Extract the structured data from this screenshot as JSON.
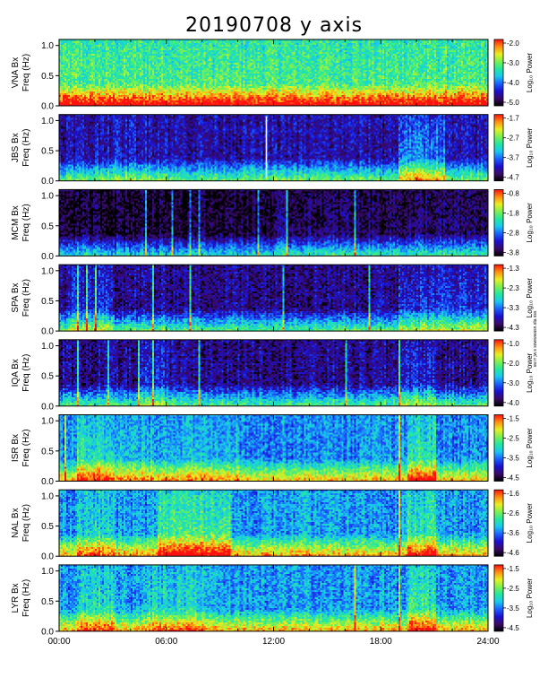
{
  "title": "20190708  y axis",
  "credit": "sw.rr jw.s sowwwasn.sta sss",
  "chart_data": {
    "type": "heatmap",
    "title": "20190708  y axis",
    "x_ticks": [
      "00:00",
      "06:00",
      "12:00",
      "18:00",
      "24:00"
    ],
    "xlim_hours": [
      0,
      24
    ],
    "ylim_hz": [
      0.0,
      1.1
    ],
    "y_ticks": [
      "0.0",
      "0.5",
      "1.0"
    ],
    "freq_unit_label": "Freq (Hz)",
    "colorbar_label": "Log₁₀ Power",
    "colormap": [
      "#000000",
      "#3a0a6a",
      "#1a10d0",
      "#1a60ff",
      "#19c8f0",
      "#22e8a0",
      "#7cf050",
      "#e8f020",
      "#ff9010",
      "#ff1010"
    ],
    "panels": [
      {
        "station": "VNA",
        "component": "Bx",
        "ylabel": "VNA  Bx",
        "cbar_ticks": [
          "-2.0",
          "-3.0",
          "-4.0",
          "-5.0"
        ],
        "cbar_range": [
          -5.0,
          -2.0
        ],
        "base_level": 0.5,
        "vlines_hours": [],
        "white_line_hours": [],
        "bursts": [
          {
            "start": 0,
            "end": 24,
            "level": 0.12
          }
        ]
      },
      {
        "station": "JBS",
        "component": "Bx",
        "ylabel": "JBS  Bx",
        "cbar_ticks": [
          "-1.7",
          "-2.7",
          "-3.7",
          "-4.7"
        ],
        "cbar_range": [
          -4.7,
          -1.7
        ],
        "base_level": 0.18,
        "vlines_hours": [],
        "white_line_hours": [
          11.6
        ],
        "bursts": [
          {
            "start": 19.0,
            "end": 21.5,
            "level": 0.25
          },
          {
            "start": 2.0,
            "end": 6.0,
            "level": 0.05
          }
        ]
      },
      {
        "station": "MCM",
        "component": "Bx",
        "ylabel": "MCM  Bx",
        "cbar_ticks": [
          "-0.8",
          "-1.8",
          "-2.8",
          "-3.8"
        ],
        "cbar_range": [
          -3.8,
          -0.8
        ],
        "base_level": 0.05,
        "vlines_hours": [
          4.8,
          6.3,
          7.3,
          7.8,
          11.1,
          12.7,
          16.5
        ],
        "white_line_hours": [],
        "bursts": [
          {
            "start": 12.0,
            "end": 24.0,
            "level": 0.06
          }
        ]
      },
      {
        "station": "SPA",
        "component": "Bx",
        "ylabel": "SPA  Bx",
        "cbar_ticks": [
          "-1.3",
          "-2.3",
          "-3.3",
          "-4.3"
        ],
        "cbar_range": [
          -4.3,
          -1.3
        ],
        "base_level": 0.15,
        "vlines_hours": [
          1.0,
          1.5,
          2.0,
          5.2,
          7.3,
          12.5,
          17.3
        ],
        "white_line_hours": [],
        "bursts": [
          {
            "start": 0.5,
            "end": 3.0,
            "level": 0.12
          },
          {
            "start": 19.0,
            "end": 24.0,
            "level": 0.15
          }
        ]
      },
      {
        "station": "IQA",
        "component": "Bx",
        "ylabel": "IQA  Bx",
        "cbar_ticks": [
          "-1.0",
          "-2.0",
          "-3.0",
          "-4.0"
        ],
        "cbar_range": [
          -4.0,
          -1.0
        ],
        "base_level": 0.15,
        "vlines_hours": [
          1.0,
          2.7,
          4.4,
          5.2,
          7.8,
          16.0,
          19.0
        ],
        "white_line_hours": [],
        "bursts": [
          {
            "start": 4.5,
            "end": 6.0,
            "level": 0.1
          },
          {
            "start": 19.0,
            "end": 21.0,
            "level": 0.12
          }
        ]
      },
      {
        "station": "ISR",
        "component": "Bx",
        "ylabel": "ISR  Bx",
        "cbar_ticks": [
          "-1.5",
          "-2.5",
          "-3.5",
          "-4.5"
        ],
        "cbar_range": [
          -4.5,
          -1.5
        ],
        "base_level": 0.38,
        "vlines_hours": [
          0.3,
          19.0
        ],
        "white_line_hours": [],
        "bursts": [
          {
            "start": 1.0,
            "end": 3.0,
            "level": 0.2
          },
          {
            "start": 3.0,
            "end": 10.0,
            "level": 0.08
          },
          {
            "start": 19.5,
            "end": 21.0,
            "level": 0.22
          }
        ]
      },
      {
        "station": "NAL",
        "component": "Bx",
        "ylabel": "NAL  Bx",
        "cbar_ticks": [
          "-1.6",
          "-2.6",
          "-3.6",
          "-4.6"
        ],
        "cbar_range": [
          -4.6,
          -1.6
        ],
        "base_level": 0.4,
        "vlines_hours": [
          19.0
        ],
        "white_line_hours": [],
        "bursts": [
          {
            "start": 5.5,
            "end": 9.5,
            "level": 0.25
          },
          {
            "start": 1.0,
            "end": 3.0,
            "level": 0.12
          },
          {
            "start": 19.5,
            "end": 21.0,
            "level": 0.2
          }
        ]
      },
      {
        "station": "LYR",
        "component": "Bx",
        "ylabel": "LYR  Bx",
        "cbar_ticks": [
          "-1.5",
          "-2.5",
          "-3.5",
          "-4.5"
        ],
        "cbar_range": [
          -4.5,
          -1.5
        ],
        "base_level": 0.4,
        "vlines_hours": [
          16.5,
          19.0
        ],
        "white_line_hours": [],
        "bursts": [
          {
            "start": 1.0,
            "end": 3.0,
            "level": 0.15
          },
          {
            "start": 5.0,
            "end": 8.0,
            "level": 0.12
          },
          {
            "start": 19.5,
            "end": 21.0,
            "level": 0.2
          }
        ]
      }
    ]
  }
}
